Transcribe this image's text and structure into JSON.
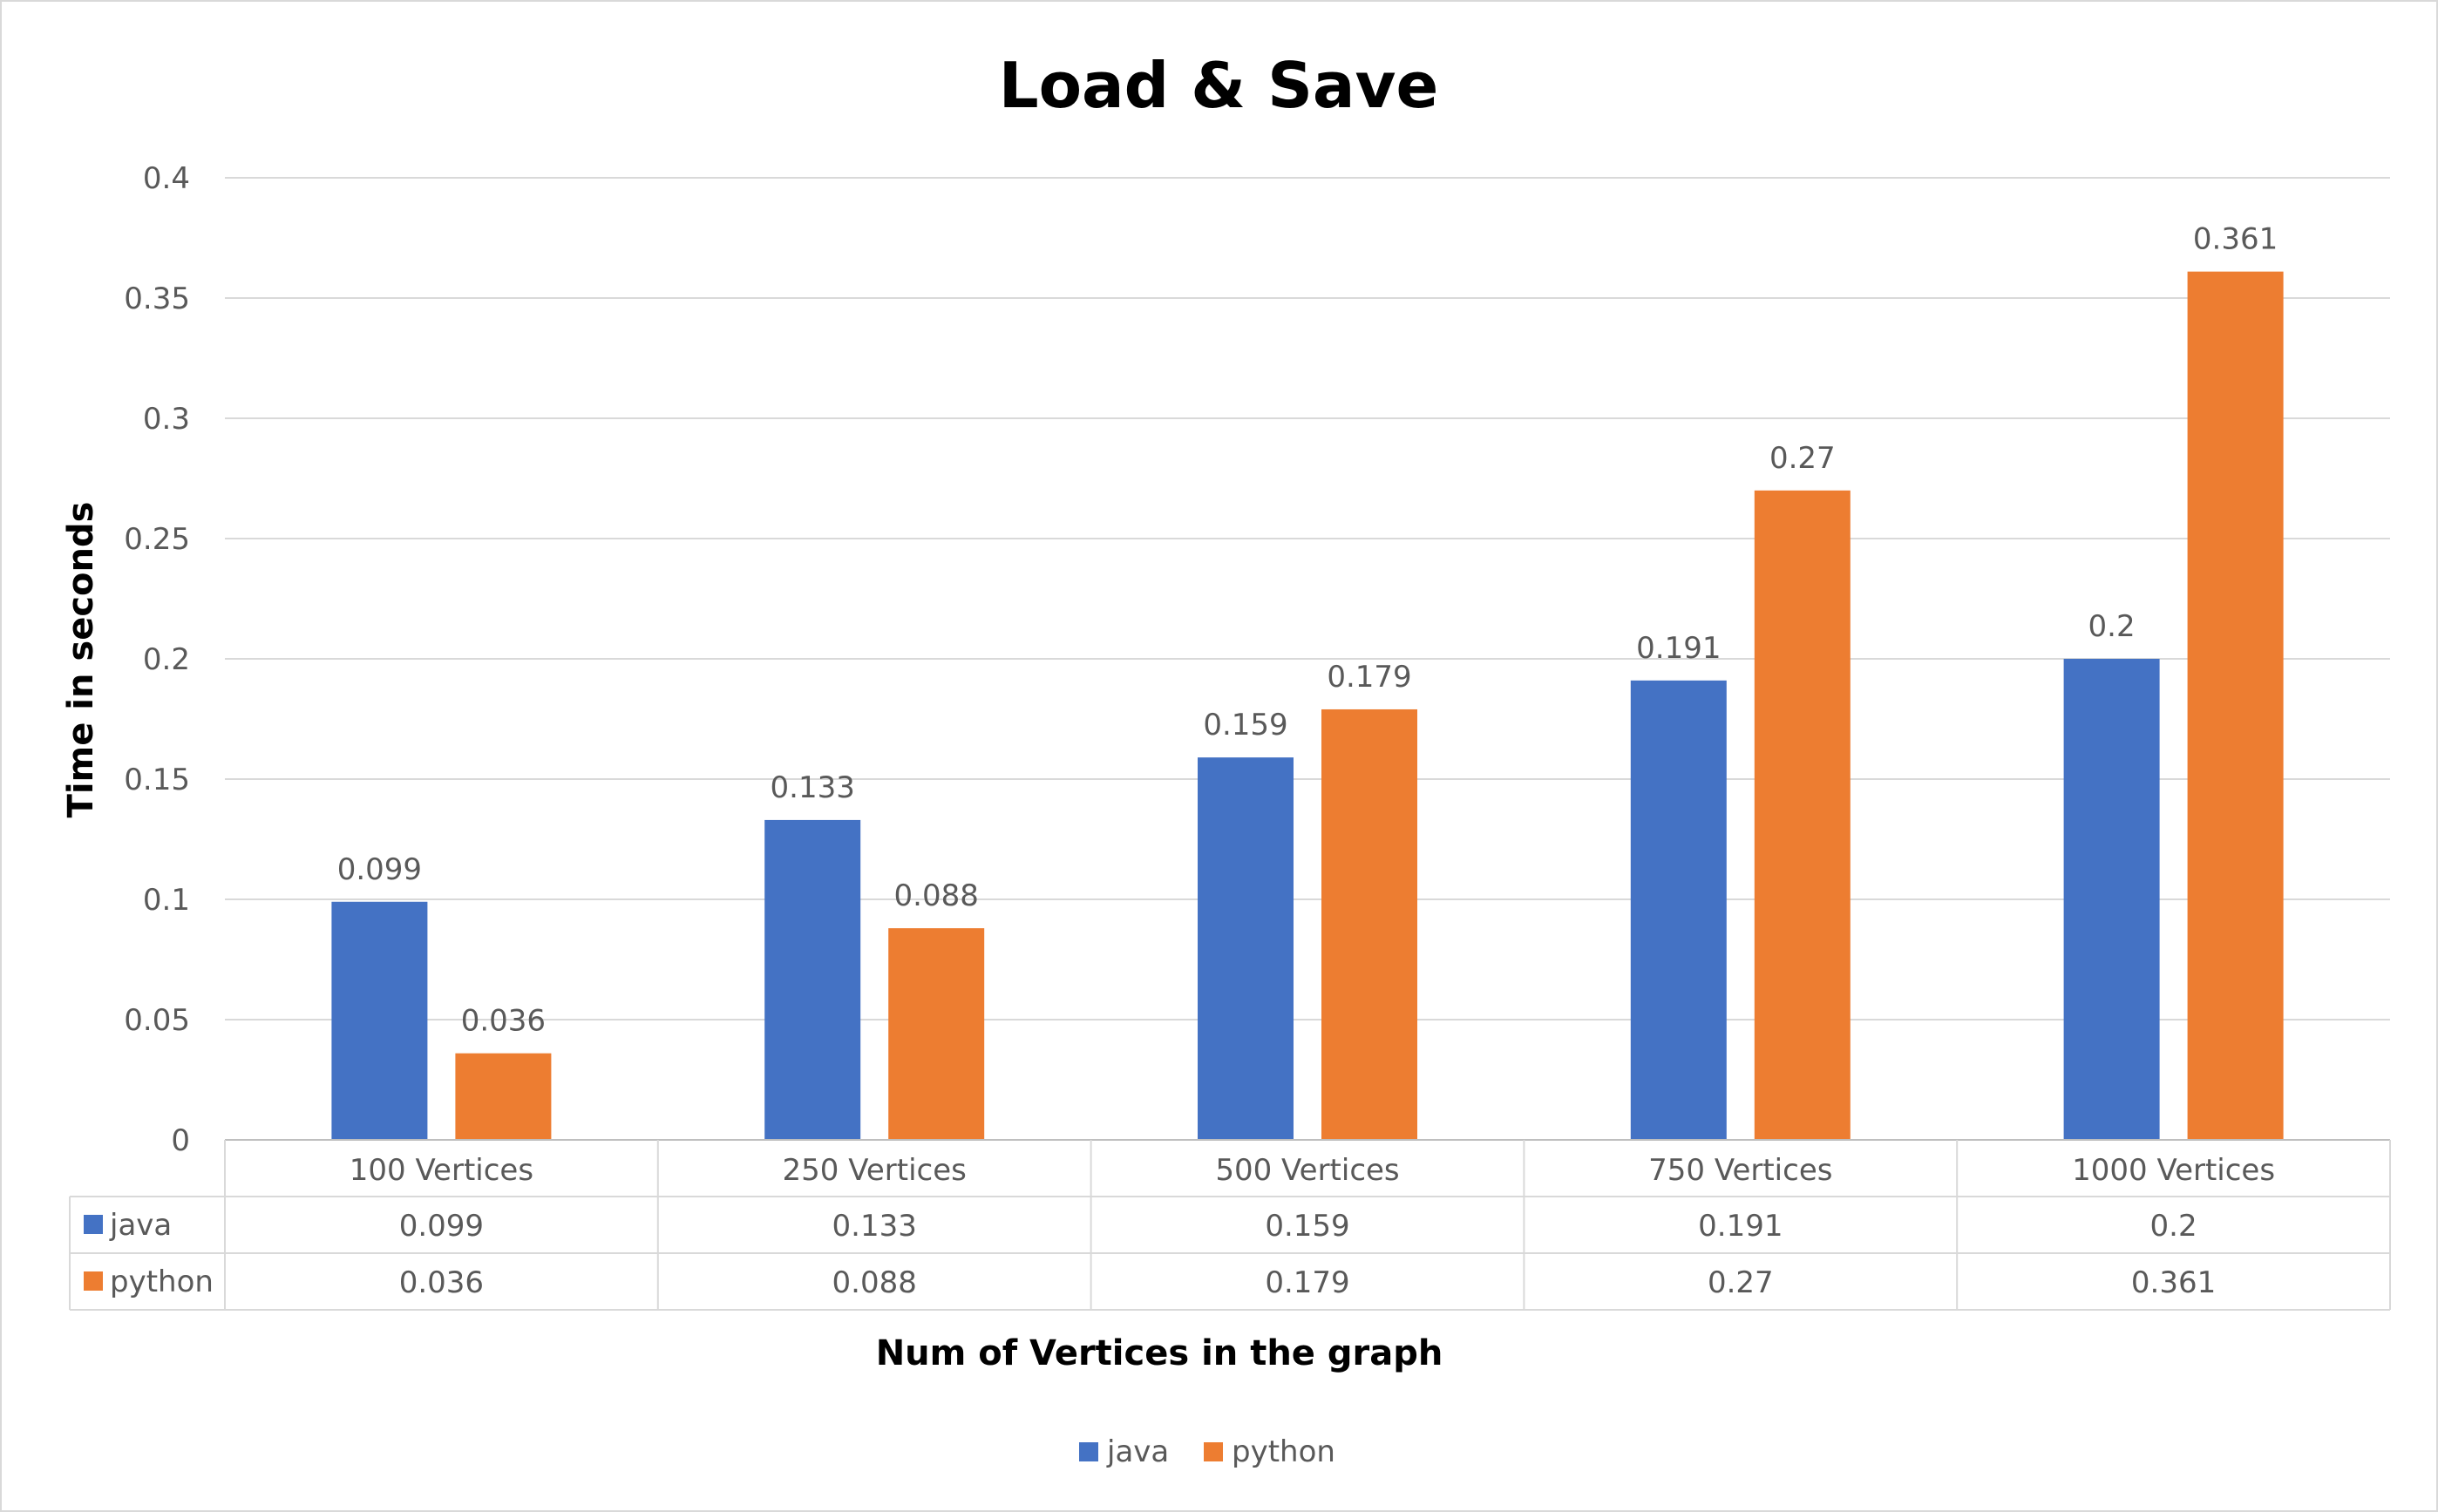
{
  "chart_data": {
    "type": "bar",
    "title": "Load & Save",
    "xlabel": "Num of Vertices in the graph",
    "ylabel": "Time in seconds",
    "categories": [
      "100 Vertices",
      "250 Vertices",
      "500 Vertices",
      "750 Vertices",
      "1000 Vertices"
    ],
    "ylim": [
      0,
      0.4
    ],
    "yticks": [
      "0",
      "0.05",
      "0.1",
      "0.15",
      "0.2",
      "0.25",
      "0.3",
      "0.35",
      "0.4"
    ],
    "grid": true,
    "legend_position": "bottom",
    "data_table": true,
    "series": [
      {
        "name": "java",
        "color": "#4472C4",
        "values": [
          0.099,
          0.133,
          0.159,
          0.191,
          0.2
        ],
        "labels": [
          "0.099",
          "0.133",
          "0.159",
          "0.191",
          "0.2"
        ]
      },
      {
        "name": "python",
        "color": "#ED7D31",
        "values": [
          0.036,
          0.088,
          0.179,
          0.27,
          0.361
        ],
        "labels": [
          "0.036",
          "0.088",
          "0.179",
          "0.27",
          "0.361"
        ]
      }
    ]
  }
}
